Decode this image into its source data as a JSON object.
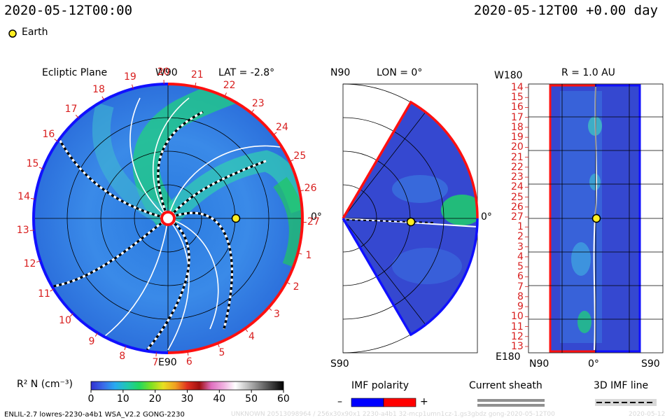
{
  "header": {
    "datetime": "2020-05-12T00:00",
    "datetime_right": "2020-05-12T00 +0.00 day",
    "legend_label": "Earth",
    "legend_color": "#ffee22"
  },
  "panels": {
    "ecliptic": {
      "title": "Ecliptic Plane",
      "top_label": "W90",
      "bottom_label": "E90",
      "right_label": "0°",
      "lat_label": "LAT = -2.8°",
      "carrington_ticks": [
        "20",
        "21",
        "22",
        "23",
        "24",
        "25",
        "26",
        "27",
        "1",
        "2",
        "3",
        "4",
        "5",
        "6",
        "7",
        "8",
        "9",
        "10",
        "11",
        "12",
        "13",
        "14",
        "15",
        "16",
        "17",
        "18",
        "19"
      ],
      "earth_fraction": 0.5
    },
    "meridional": {
      "top_label": "N90",
      "bottom_label": "S90",
      "right_label": "0°",
      "lon_label": "LON = 0°"
    },
    "radial": {
      "title": "R = 1.0 AU",
      "top_left_label": "W180",
      "bottom_left_label": "E180",
      "x_labels": [
        "N90",
        "0°",
        "S90"
      ],
      "y_labels": [
        "14",
        "15",
        "16",
        "17",
        "18",
        "19",
        "20",
        "21",
        "22",
        "23",
        "24",
        "25",
        "26",
        "27",
        "1",
        "2",
        "3",
        "4",
        "5",
        "6",
        "7",
        "8",
        "9",
        "10",
        "11",
        "12",
        "13"
      ]
    }
  },
  "colorbar": {
    "label": "R² N (cm⁻³)",
    "ticks": [
      "0",
      "10",
      "20",
      "30",
      "40",
      "50",
      "60"
    ],
    "range": [
      0,
      60
    ],
    "colors": [
      "#3030d0",
      "#3a6ae8",
      "#28aaf0",
      "#20c8b0",
      "#20d860",
      "#80e020",
      "#e8e020",
      "#f0a020",
      "#e03020",
      "#a01010",
      "#e070c0",
      "#f0b0e0",
      "#ffffff",
      "#c0c0c0",
      "#808080",
      "#404040",
      "#000000"
    ]
  },
  "legends": {
    "imf_title": "IMF polarity",
    "imf_minus": "–",
    "imf_plus": "+",
    "imf_neg_color": "#0000ff",
    "imf_pos_color": "#ff0000",
    "sheath_title": "Current sheath",
    "imf_line_title": "3D IMF line"
  },
  "footer": {
    "model": "ENLIL-2.7 lowres-2230-a4b1 WSA_V2.2 GONG-2230",
    "watermark": "UNKNOWN 20513098964 / 256x30x90x1 2230-a4b1 32-mcp1umn1cz-1.gs3gbdz gong-2020-05-12T00",
    "watermark_right": "2020-05-12"
  },
  "chart_data": [
    {
      "type": "heatmap",
      "title": "Ecliptic Plane",
      "subtitle": "LAT = -2.8°",
      "quantity": "R² N (cm⁻³)",
      "color_range": [
        0,
        60
      ],
      "earth": {
        "label": "Earth",
        "angle_deg": 0,
        "radius_au": 1.0
      },
      "angular_labels": [
        "W90",
        "0°",
        "E90"
      ]
    },
    {
      "type": "heatmap",
      "subtitle": "LON = 0°",
      "axis_labels": [
        "N90",
        "0°",
        "S90"
      ],
      "latitude_range_deg": [
        -60,
        60
      ]
    },
    {
      "type": "heatmap",
      "title": "R = 1.0 AU",
      "x_labels": [
        "N90",
        "0°",
        "S90"
      ],
      "y_ticks": [
        "14",
        "15",
        "16",
        "17",
        "18",
        "19",
        "20",
        "21",
        "22",
        "23",
        "24",
        "25",
        "26",
        "27",
        "1",
        "2",
        "3",
        "4",
        "5",
        "6",
        "7",
        "8",
        "9",
        "10",
        "11",
        "12",
        "13"
      ],
      "y_range_labels": [
        "W180",
        "E180"
      ]
    }
  ]
}
